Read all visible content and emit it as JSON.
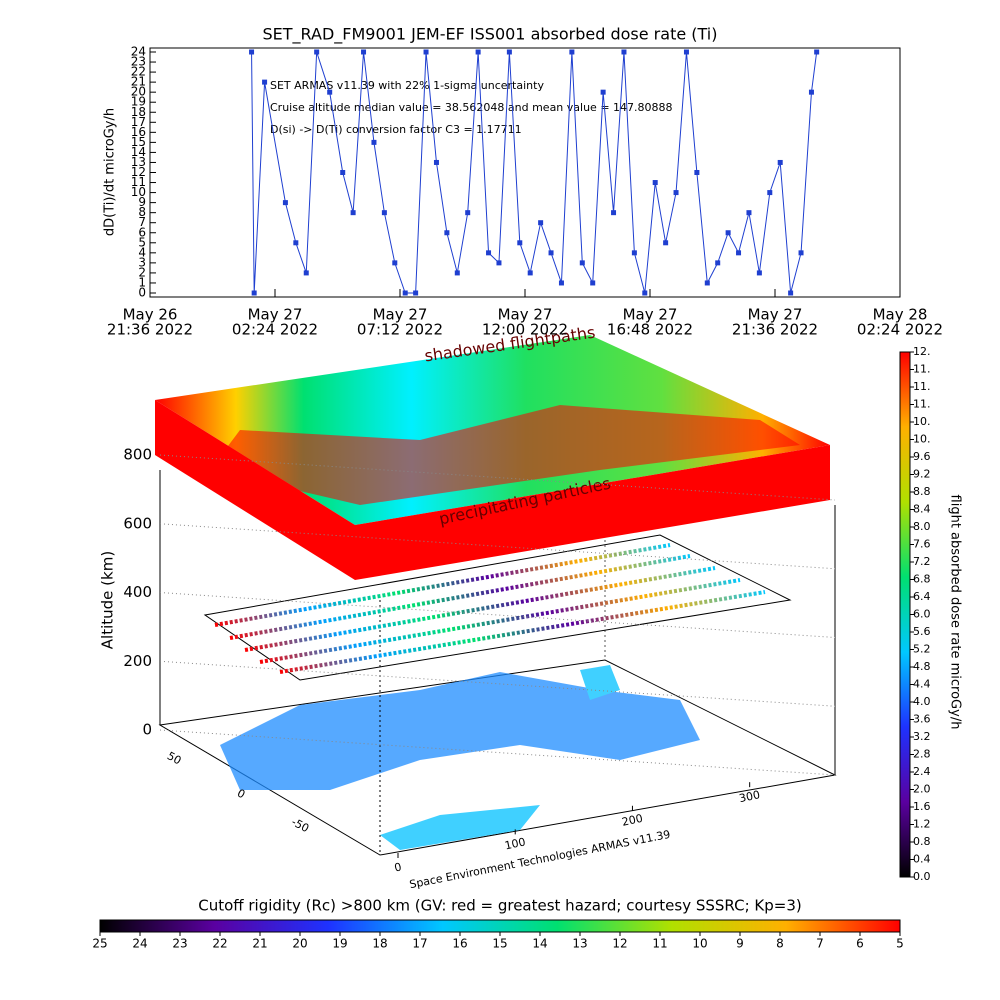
{
  "chart_data": [
    {
      "type": "line",
      "title": "SET_RAD_FM9001  JEM-EF ISS001 absorbed dose rate (Ti)",
      "ylabel": "dD(Ti)/dt microGy/h",
      "annotations": [
        "SET ARMAS v11.39 with 22% 1-sigma uncertainty",
        "Cruise altitude median value = 38.562048 and mean value = 147.80888",
        "D(si) -> D(Ti) conversion factor C3 = 1.17711"
      ],
      "xlim": [
        "2022-05-26T21:36",
        "2022-05-28T02:24"
      ],
      "xticks": [
        {
          "value": "2022-05-26T21:36",
          "label": [
            "May 26",
            "21:36 2022"
          ]
        },
        {
          "value": "2022-05-27T02:24",
          "label": [
            "May 27",
            "02:24 2022"
          ]
        },
        {
          "value": "2022-05-27T07:12",
          "label": [
            "May 27",
            "07:12 2022"
          ]
        },
        {
          "value": "2022-05-27T12:00",
          "label": [
            "May 27",
            "12:00 2022"
          ]
        },
        {
          "value": "2022-05-27T16:48",
          "label": [
            "May 27",
            "16:48 2022"
          ]
        },
        {
          "value": "2022-05-27T21:36",
          "label": [
            "May 27",
            "21:36 2022"
          ]
        },
        {
          "value": "2022-05-28T02:24",
          "label": [
            "May 28",
            "02:24 2022"
          ]
        }
      ],
      "ylim": [
        0,
        24
      ],
      "yticks": [
        0,
        1,
        2,
        3,
        4,
        5,
        6,
        7,
        8,
        9,
        10,
        11,
        12,
        13,
        14,
        15,
        16,
        17,
        18,
        19,
        20,
        21,
        22,
        23,
        24
      ],
      "series": [
        {
          "color": "#1f3fd0",
          "x": [
            "2022-05-27T01:30",
            "2022-05-27T01:36",
            "2022-05-27T02:00",
            "2022-05-27T02:48",
            "2022-05-27T03:12",
            "2022-05-27T03:36",
            "2022-05-27T04:00",
            "2022-05-27T04:30",
            "2022-05-27T05:00",
            "2022-05-27T05:24",
            "2022-05-27T05:48",
            "2022-05-27T06:12",
            "2022-05-27T06:36",
            "2022-05-27T07:00",
            "2022-05-27T07:24",
            "2022-05-27T07:48",
            "2022-05-27T08:12",
            "2022-05-27T08:36",
            "2022-05-27T09:00",
            "2022-05-27T09:24",
            "2022-05-27T09:48",
            "2022-05-27T10:12",
            "2022-05-27T10:36",
            "2022-05-27T11:00",
            "2022-05-27T11:24",
            "2022-05-27T11:48",
            "2022-05-27T12:12",
            "2022-05-27T12:36",
            "2022-05-27T13:00",
            "2022-05-27T13:24",
            "2022-05-27T13:48",
            "2022-05-27T14:12",
            "2022-05-27T14:36",
            "2022-05-27T15:00",
            "2022-05-27T15:24",
            "2022-05-27T15:48",
            "2022-05-27T16:12",
            "2022-05-27T16:36",
            "2022-05-27T17:00",
            "2022-05-27T17:24",
            "2022-05-27T17:48",
            "2022-05-27T18:12",
            "2022-05-27T18:36",
            "2022-05-27T19:00",
            "2022-05-27T19:24",
            "2022-05-27T19:48",
            "2022-05-27T20:12",
            "2022-05-27T20:36",
            "2022-05-27T21:00",
            "2022-05-27T21:24",
            "2022-05-27T21:48",
            "2022-05-27T22:12",
            "2022-05-27T22:36",
            "2022-05-27T23:00",
            "2022-05-27T23:12"
          ],
          "values": [
            24,
            0,
            21,
            9,
            5,
            2,
            24,
            20,
            12,
            8,
            24,
            15,
            8,
            3,
            0,
            0,
            24,
            13,
            6,
            2,
            8,
            24,
            4,
            3,
            24,
            5,
            2,
            7,
            4,
            1,
            24,
            3,
            1,
            20,
            8,
            24,
            4,
            0,
            11,
            5,
            10,
            24,
            12,
            1,
            3,
            6,
            4,
            8,
            2,
            10,
            13,
            0,
            4,
            20,
            24
          ]
        }
      ]
    },
    {
      "type": "surface3d",
      "labels": [
        "shadowed flightpaths",
        "precipitating particles"
      ],
      "zlabel": "Altitude (km)",
      "zlim": [
        0,
        800
      ],
      "zticks": [
        0,
        200,
        400,
        600,
        800
      ],
      "ylim": [
        -90,
        90
      ],
      "yticks": [
        50,
        0,
        -50
      ],
      "xlim": [
        0,
        360
      ],
      "xticks": [
        0,
        100,
        200,
        300
      ],
      "footer": "Space Environment Technologies ARMAS v11.39"
    },
    {
      "type": "colorbar",
      "label": "flight absorbed dose rate microGy/h",
      "colors": [
        "#000000",
        "#5a00a0",
        "#1e32ff",
        "#00c8ff",
        "#00e070",
        "#b0e000",
        "#ffb000",
        "#ff0000"
      ],
      "ylim": [
        0,
        12
      ],
      "yticks": [
        {
          "value": 0.0,
          "label": "0.0"
        },
        {
          "value": 0.4,
          "label": "0.4"
        },
        {
          "value": 0.8,
          "label": "0.8"
        },
        {
          "value": 1.2,
          "label": "1.2"
        },
        {
          "value": 1.6,
          "label": "1.6"
        },
        {
          "value": 2.0,
          "label": "2.0"
        },
        {
          "value": 2.4,
          "label": "2.4"
        },
        {
          "value": 2.8,
          "label": "2.8"
        },
        {
          "value": 3.2,
          "label": "3.2"
        },
        {
          "value": 3.6,
          "label": "3.6"
        },
        {
          "value": 4.0,
          "label": "4.0"
        },
        {
          "value": 4.4,
          "label": "4.4"
        },
        {
          "value": 4.8,
          "label": "4.8"
        },
        {
          "value": 5.2,
          "label": "5.2"
        },
        {
          "value": 5.6,
          "label": "5.6"
        },
        {
          "value": 6.0,
          "label": "6.0"
        },
        {
          "value": 6.4,
          "label": "6.4"
        },
        {
          "value": 6.8,
          "label": "6.8"
        },
        {
          "value": 7.2,
          "label": "7.2"
        },
        {
          "value": 7.6,
          "label": "7.6"
        },
        {
          "value": 8.0,
          "label": "8.0"
        },
        {
          "value": 8.4,
          "label": "8.4"
        },
        {
          "value": 8.8,
          "label": "8.8"
        },
        {
          "value": 9.2,
          "label": "9.2"
        },
        {
          "value": 9.6,
          "label": "9.6"
        },
        {
          "value": 10.0,
          "label": "10."
        },
        {
          "value": 10.4,
          "label": "10."
        },
        {
          "value": 10.8,
          "label": "11."
        },
        {
          "value": 11.2,
          "label": "11."
        },
        {
          "value": 11.6,
          "label": "11."
        },
        {
          "value": 12.0,
          "label": "12."
        }
      ]
    },
    {
      "type": "colorbar",
      "label": "Cutoff rigidity (Rc) >800 km (GV: red = greatest hazard; courtesy SSSRC; Kp=3)",
      "colors": [
        "#000000",
        "#5a00a0",
        "#1e32ff",
        "#00c8ff",
        "#00e070",
        "#b0e000",
        "#ffb000",
        "#ff0000"
      ],
      "xlim": [
        25,
        5
      ],
      "xticks": [
        25,
        24,
        23,
        22,
        21,
        20,
        19,
        18,
        17,
        16,
        15,
        14,
        13,
        12,
        11,
        10,
        9,
        8,
        7,
        6,
        5
      ]
    }
  ]
}
